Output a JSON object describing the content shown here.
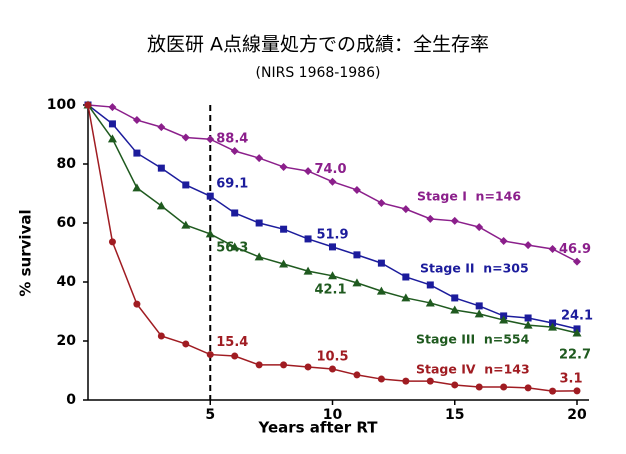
{
  "chart_data": {
    "type": "line",
    "title": "放医研 A点線量処方での成績：全生存率",
    "subtitle": "(NIRS 1968-1986)",
    "x_label": "Years after RT",
    "y_label": "% survival",
    "x": [
      0,
      1,
      2,
      3,
      4,
      5,
      6,
      7,
      8,
      9,
      10,
      11,
      12,
      13,
      14,
      15,
      16,
      17,
      18,
      19,
      20
    ],
    "xlim": [
      0,
      20
    ],
    "ylim": [
      0,
      100
    ],
    "xticks": [
      5,
      10,
      15,
      20
    ],
    "yticks": [
      0,
      20,
      40,
      60,
      80,
      100
    ],
    "reference_line_x": 5,
    "series": [
      {
        "name": "Stage I  n=146",
        "color": "#8b1f8b",
        "marker": "diamond",
        "values": [
          100,
          99.3,
          94.9,
          92.5,
          89,
          88.4,
          84.4,
          82,
          79,
          77.6,
          74,
          71.2,
          66.8,
          64.7,
          61.4,
          60.7,
          58.6,
          53.9,
          52.5,
          51.2,
          46.9
        ],
        "value_labels": [
          null,
          null,
          null,
          null,
          null,
          "88.4",
          null,
          null,
          null,
          null,
          "74.0",
          null,
          null,
          null,
          null,
          null,
          null,
          null,
          null,
          null,
          "46.9"
        ]
      },
      {
        "name": "Stage II  n=305",
        "color": "#1c1c9c",
        "marker": "square",
        "values": [
          100,
          93.6,
          83.7,
          78.6,
          72.9,
          69.1,
          63.4,
          60,
          57.9,
          54.6,
          51.9,
          49.2,
          46.4,
          41.7,
          39,
          34.6,
          31.9,
          28.5,
          27.8,
          26.1,
          24.1
        ],
        "value_labels": [
          null,
          null,
          null,
          null,
          null,
          "69.1",
          null,
          null,
          null,
          null,
          "51.9",
          null,
          null,
          null,
          null,
          null,
          null,
          null,
          null,
          null,
          "24.1"
        ]
      },
      {
        "name": "Stage III  n=554",
        "color": "#1f5a1f",
        "marker": "triangle",
        "values": [
          100,
          88.5,
          71.9,
          65.8,
          59.3,
          56.3,
          51.9,
          48.5,
          46.1,
          43.7,
          42.1,
          39.7,
          36.9,
          34.6,
          32.9,
          30.5,
          29.2,
          27.1,
          25.4,
          24.7,
          22.7
        ],
        "value_labels": [
          null,
          null,
          null,
          null,
          null,
          "56.3",
          null,
          null,
          null,
          null,
          "42.1",
          null,
          null,
          null,
          null,
          null,
          null,
          null,
          null,
          null,
          "22.7"
        ]
      },
      {
        "name": "Stage IV  n=143",
        "color": "#a01c22",
        "marker": "circle",
        "values": [
          100,
          53.6,
          32.5,
          21.7,
          19,
          15.4,
          14.9,
          11.9,
          11.9,
          11.2,
          10.5,
          8.5,
          7.1,
          6.4,
          6.4,
          5.1,
          4.4,
          4.4,
          4.1,
          3,
          3.1
        ],
        "value_labels": [
          null,
          null,
          null,
          null,
          null,
          "15.4",
          null,
          null,
          null,
          null,
          "10.5",
          null,
          null,
          null,
          null,
          null,
          null,
          null,
          null,
          null,
          "3.1"
        ]
      }
    ]
  }
}
